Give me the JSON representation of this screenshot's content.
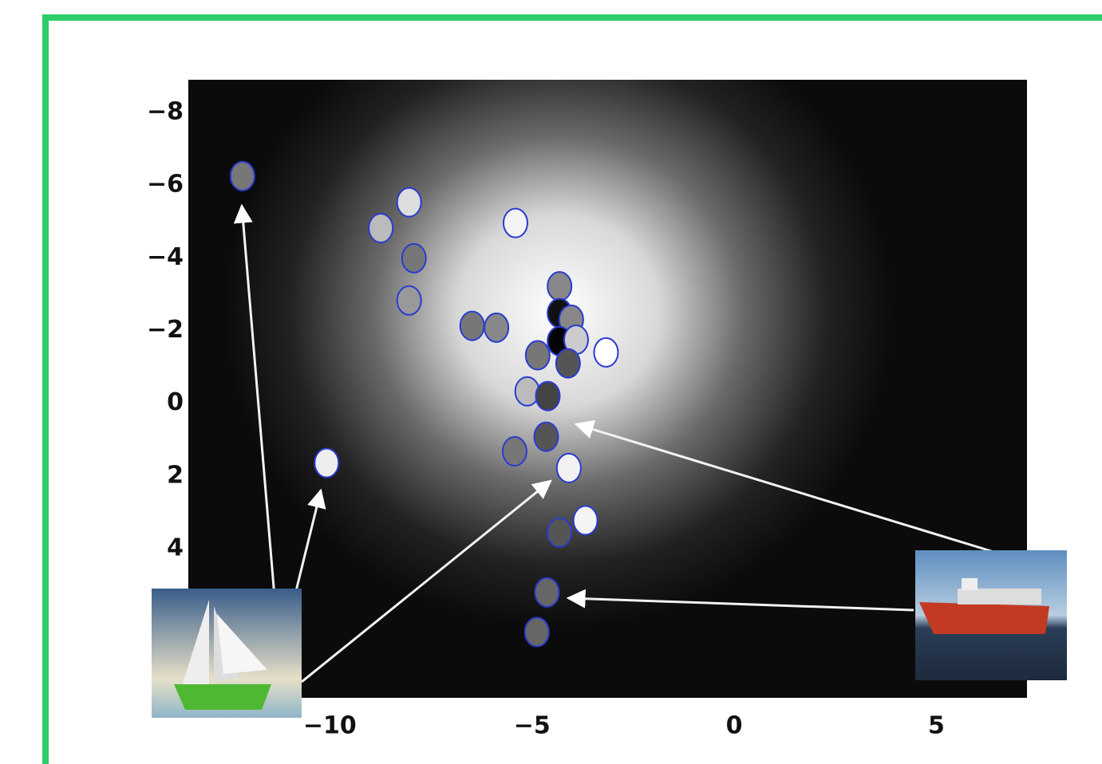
{
  "chart_data": {
    "type": "scatter",
    "x": [
      -12.16,
      -8.04,
      -8.74,
      -7.92,
      -8.04,
      -5.41,
      -6.48,
      -5.88,
      -4.32,
      -4.32,
      -4.03,
      -4.32,
      -3.91,
      -3.17,
      -4.86,
      -4.11,
      -5.12,
      -4.61,
      -4.65,
      -5.43,
      -4.09,
      -3.68,
      -4.32,
      -4.63,
      -4.88,
      -10.08
    ],
    "values": [
      -6.25,
      -5.53,
      -4.82,
      -3.99,
      -2.83,
      -4.96,
      -2.13,
      -2.08,
      -3.22,
      -2.48,
      -2.3,
      -1.71,
      -1.75,
      -1.4,
      -1.32,
      -1.1,
      -0.33,
      -0.2,
      0.92,
      1.32,
      1.78,
      3.22,
      3.55,
      5.2,
      6.29,
      1.64
    ],
    "point_colors": [
      "#777",
      "#ddd",
      "#bbb",
      "#777",
      "#999",
      "#f4f4f4",
      "#777",
      "#888",
      "#888",
      "#111",
      "#888",
      "#050505",
      "#ccc",
      "#fff",
      "#777",
      "#555",
      "#bbb",
      "#444",
      "#555",
      "#777",
      "#f2f2f2",
      "#f4f4f4",
      "#555",
      "#666",
      "#666",
      "#eee"
    ],
    "edge_color": "#2a3bd0",
    "xlim": [
      -13.5,
      7.24
    ],
    "ylim": [
      8.1,
      -8.9
    ],
    "y_inverted": true,
    "xticks": [
      {
        "value": -10,
        "label": "−10"
      },
      {
        "value": -5,
        "label": "−5"
      },
      0,
      5
    ],
    "yticks": [
      {
        "value": -8,
        "label": "−8"
      },
      {
        "value": -6,
        "label": "−6"
      },
      {
        "value": -4,
        "label": "−4"
      },
      {
        "value": -2,
        "label": "−2"
      },
      0,
      2,
      4
    ]
  }
}
